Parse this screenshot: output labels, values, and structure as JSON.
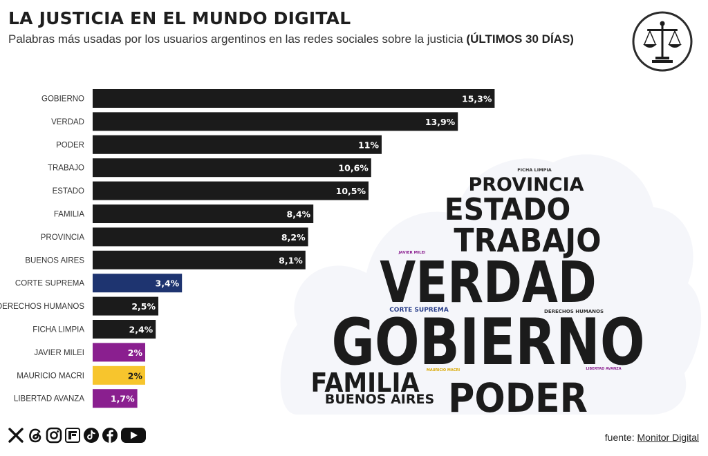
{
  "header": {
    "title": "LA JUSTICIA EN EL MUNDO DIGITAL",
    "subtitle": "Palabras más usadas por los usuarios argentinos en las redes sociales sobre la justicia",
    "subtitle_bold": "(ÚLTIMOS 30 DÍAS)"
  },
  "chart_data": {
    "type": "bar",
    "orientation": "horizontal",
    "title": "LA JUSTICIA EN EL MUNDO DIGITAL",
    "categories": [
      "GOBIERNO",
      "VERDAD",
      "PODER",
      "TRABAJO",
      "ESTADO",
      "FAMILIA",
      "PROVINCIA",
      "BUENOS AIRES",
      "CORTE SUPREMA",
      "DERECHOS HUMANOS",
      "FICHA LIMPIA",
      "JAVIER MILEI",
      "MAURICIO MACRI",
      "LIBERTAD AVANZA"
    ],
    "values": [
      15.3,
      13.9,
      11,
      10.6,
      10.5,
      8.4,
      8.2,
      8.1,
      3.4,
      2.5,
      2.4,
      2,
      2,
      1.7
    ],
    "labels": [
      "15,3%",
      "13,9%",
      "11%",
      "10,6%",
      "10,5%",
      "8,4%",
      "8,2%",
      "8,1%",
      "3,4%",
      "2,5%",
      "2,4%",
      "2%",
      "2%",
      "1,7%"
    ],
    "colors": [
      "#1b1b1b",
      "#1b1b1b",
      "#1b1b1b",
      "#1b1b1b",
      "#1b1b1b",
      "#1b1b1b",
      "#1b1b1b",
      "#1b1b1b",
      "#1e3470",
      "#1b1b1b",
      "#1b1b1b",
      "#8a1f8f",
      "#f7c52d",
      "#8a1f8f"
    ],
    "xlim": [
      0,
      16
    ],
    "xlabel": "",
    "ylabel": "",
    "legend": "none",
    "grid": false
  },
  "wordcloud": [
    {
      "word": "FICHA LIMPIA",
      "color": "#333333"
    },
    {
      "word": "PROVINCIA",
      "color": "#1b1b1b"
    },
    {
      "word": "ESTADO",
      "color": "#1b1b1b"
    },
    {
      "word": "TRABAJO",
      "color": "#1b1b1b"
    },
    {
      "word": "JAVIER MILEI",
      "color": "#8a1f8f"
    },
    {
      "word": "VERDAD",
      "color": "#1b1b1b"
    },
    {
      "word": "CORTE SUPREMA",
      "color": "#2a3f8a"
    },
    {
      "word": "DERECHOS HUMANOS",
      "color": "#333333"
    },
    {
      "word": "GOBIERNO",
      "color": "#1b1b1b"
    },
    {
      "word": "FAMILIA",
      "color": "#1b1b1b"
    },
    {
      "word": "MAURICIO MACRI",
      "color": "#d9a800"
    },
    {
      "word": "LIBERTAD AVANZA",
      "color": "#8a1f8f"
    },
    {
      "word": "BUENOS AIRES",
      "color": "#1b1b1b"
    },
    {
      "word": "PODER",
      "color": "#1b1b1b"
    }
  ],
  "footer": {
    "source_prefix": "fuente:",
    "source_name": "Monitor Digital",
    "social_icons": [
      "x-icon",
      "threads-icon",
      "instagram-icon",
      "flipboard-icon",
      "tiktok-icon",
      "facebook-icon",
      "youtube-icon"
    ]
  }
}
